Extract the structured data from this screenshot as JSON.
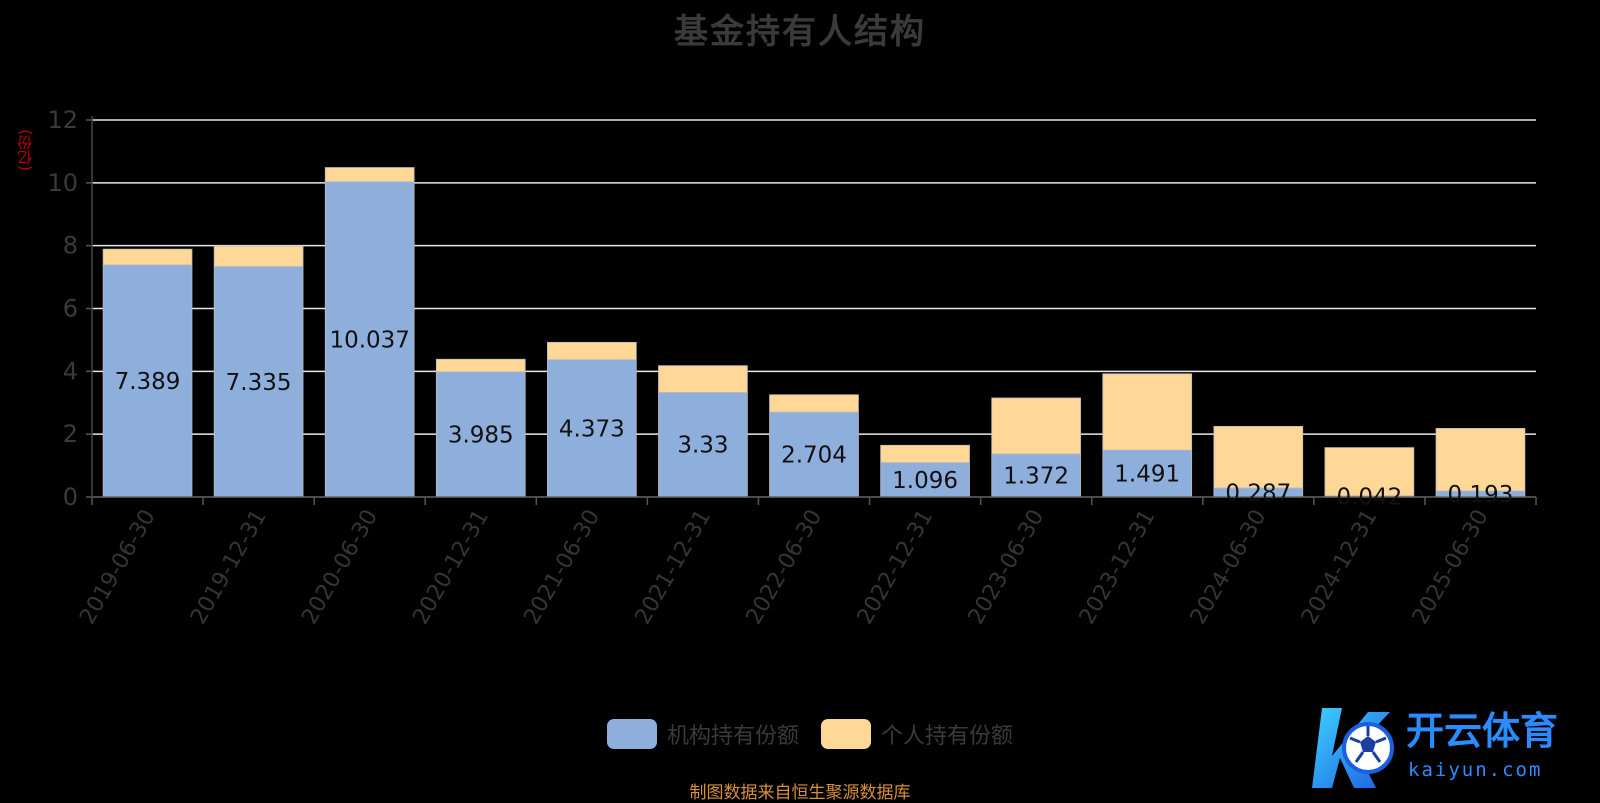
{
  "title": "基金持有人结构",
  "y_unit": "(亿份)",
  "source": "制图数据来自恒生聚源数据库",
  "watermark": {
    "name": "开云体育",
    "domain": "kaiyun.com"
  },
  "chart_data": {
    "type": "bar",
    "stacked": true,
    "title": "基金持有人结构",
    "ylabel": "(亿份)",
    "ylim": [
      0,
      12
    ],
    "yticks": [
      0,
      2,
      4,
      6,
      8,
      10,
      12
    ],
    "grid": true,
    "legend_position": "bottom-center",
    "categories": [
      "2019-06-30",
      "2019-12-31",
      "2020-06-30",
      "2020-12-31",
      "2021-06-30",
      "2021-12-31",
      "2022-06-30",
      "2022-12-31",
      "2023-06-30",
      "2023-12-31",
      "2024-06-30",
      "2024-12-31",
      "2025-06-30"
    ],
    "series": [
      {
        "name": "机构持有份额",
        "color": "#8eaedc",
        "values": [
          7.389,
          7.335,
          10.037,
          3.985,
          4.373,
          3.33,
          2.704,
          1.096,
          1.372,
          1.491,
          0.287,
          0.042,
          0.193
        ]
      },
      {
        "name": "个人持有份额",
        "color": "#ffd797",
        "values": [
          0.5,
          0.65,
          0.45,
          0.4,
          0.55,
          0.85,
          0.55,
          0.55,
          1.78,
          2.43,
          1.96,
          1.53,
          1.99
        ]
      }
    ],
    "data_labels": [
      "7.389",
      "7.335",
      "10.037",
      "3.985",
      "4.373",
      "3.33",
      "2.704",
      "1.096",
      "1.372",
      "1.491",
      "0.287",
      "0.042",
      "0.193"
    ]
  }
}
